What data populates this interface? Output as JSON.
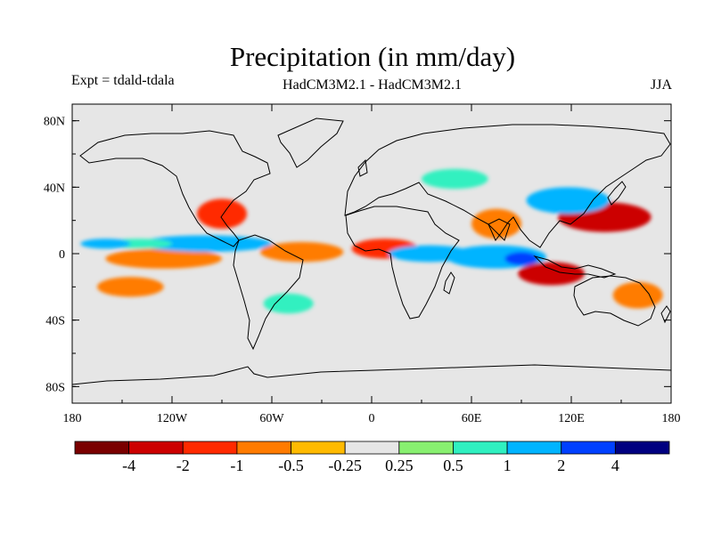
{
  "chart_data": {
    "type": "heatmap",
    "title": "Precipitation (in mm/day)",
    "experiment": "Expt = tdald-tdala",
    "subtitle": "HadCM3M2.1 - HadCM3M2.1",
    "season": "JJA",
    "x_ticks": [
      {
        "value": -180,
        "label": "180"
      },
      {
        "value": -120,
        "label": "120W"
      },
      {
        "value": -60,
        "label": "60W"
      },
      {
        "value": 0,
        "label": "0"
      },
      {
        "value": 60,
        "label": "60E"
      },
      {
        "value": 120,
        "label": "120E"
      },
      {
        "value": 180,
        "label": "180"
      }
    ],
    "y_ticks": [
      {
        "value": 80,
        "label": "80N"
      },
      {
        "value": 40,
        "label": "40N"
      },
      {
        "value": 0,
        "label": "0"
      },
      {
        "value": -40,
        "label": "40S"
      },
      {
        "value": -80,
        "label": "80S"
      }
    ],
    "xlim": [
      -180,
      180
    ],
    "ylim": [
      -90,
      90
    ],
    "colorbar": {
      "colors": [
        "#7a0000",
        "#cc0000",
        "#ff2a00",
        "#ff7b00",
        "#ffba00",
        "#e6e6e6",
        "#88f070",
        "#30f0c0",
        "#00b4ff",
        "#0040ff",
        "#000080"
      ],
      "labels": [
        "-4",
        "-2",
        "-1",
        "-0.5",
        "-0.25",
        "0.25",
        "0.5",
        "1",
        "2",
        "4"
      ]
    },
    "anomaly_regions": [
      {
        "lon": -125,
        "lat": -3,
        "rlon": 35,
        "rlat": 6,
        "level": "-0.5"
      },
      {
        "lon": -100,
        "lat": 6,
        "rlon": 40,
        "rlat": 5,
        "level": "1"
      },
      {
        "lon": -140,
        "lat": 6,
        "rlon": 20,
        "rlat": 3,
        "level": "0.5"
      },
      {
        "lon": -90,
        "lat": 24,
        "rlon": 15,
        "rlat": 9,
        "level": "-1"
      },
      {
        "lon": -145,
        "lat": -20,
        "rlon": 20,
        "rlat": 6,
        "level": "-0.5"
      },
      {
        "lon": -42,
        "lat": 1,
        "rlon": 25,
        "rlat": 6,
        "level": "-0.5"
      },
      {
        "lon": 8,
        "lat": 3,
        "rlon": 20,
        "rlat": 6,
        "level": "-1"
      },
      {
        "lon": 35,
        "lat": 0,
        "rlon": 25,
        "rlat": 5,
        "level": "1"
      },
      {
        "lon": 75,
        "lat": -2,
        "rlon": 30,
        "rlat": 7,
        "level": "1"
      },
      {
        "lon": 90,
        "lat": -3,
        "rlon": 10,
        "rlat": 4,
        "level": "2"
      },
      {
        "lon": 108,
        "lat": -12,
        "rlon": 20,
        "rlat": 7,
        "level": "-2"
      },
      {
        "lon": 140,
        "lat": 22,
        "rlon": 28,
        "rlat": 9,
        "level": "-2"
      },
      {
        "lon": 118,
        "lat": 32,
        "rlon": 25,
        "rlat": 8,
        "level": "1"
      },
      {
        "lon": 75,
        "lat": 18,
        "rlon": 15,
        "rlat": 9,
        "level": "-0.5"
      },
      {
        "lon": 50,
        "lat": 45,
        "rlon": 20,
        "rlat": 6,
        "level": "0.5"
      },
      {
        "lon": -50,
        "lat": -30,
        "rlon": 15,
        "rlat": 6,
        "level": "0.5"
      },
      {
        "lon": 160,
        "lat": -25,
        "rlon": 15,
        "rlat": 8,
        "level": "-0.5"
      },
      {
        "lon": -160,
        "lat": 6,
        "rlon": 15,
        "rlat": 3,
        "level": "1"
      }
    ]
  }
}
